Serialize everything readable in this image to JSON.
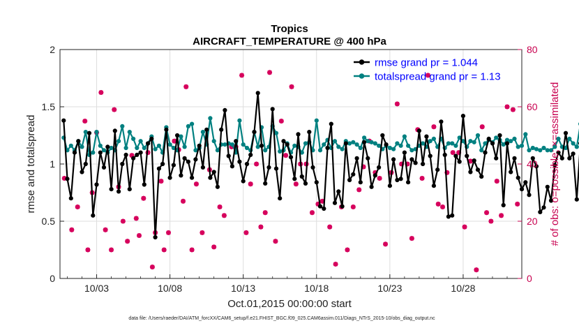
{
  "chart_data": {
    "type": "line",
    "title": "Tropics",
    "subtitle": "AIRCRAFT_TEMPERATURE @ 400 hPa",
    "xlabel": "Oct.01,2015 00:00:00 start",
    "ylabel": "rmse and totalspread",
    "y2label": "# of obs: o=possible; ×=assimilated",
    "xlim": [
      0.5,
      32
    ],
    "ylim": [
      0,
      2
    ],
    "y2lim": [
      0,
      80
    ],
    "x_ticks": [
      3,
      8,
      13,
      18,
      23,
      28
    ],
    "x_tick_labels": [
      "10/03",
      "10/08",
      "10/13",
      "10/18",
      "10/23",
      "10/28"
    ],
    "y_ticks": [
      0,
      0.5,
      1,
      1.5,
      2
    ],
    "y_tick_labels": [
      "0",
      "0.5",
      "1",
      "1.5",
      "2"
    ],
    "y2_ticks": [
      0,
      20,
      40,
      60,
      80
    ],
    "y2_tick_labels": [
      "0",
      "20",
      "40",
      "60",
      "80"
    ],
    "x_start": 0.75,
    "x_step": 0.25,
    "series": [
      {
        "name": "rmse grand pr = 1.044",
        "color": "#000000",
        "values": [
          1.38,
          0.87,
          0.7,
          1.1,
          1.2,
          0.93,
          1.0,
          1.27,
          0.55,
          0.82,
          1.1,
          0.97,
          1.15,
          0.78,
          1.29,
          0.76,
          1.0,
          1.08,
          0.78,
          1.05,
          1.08,
          1.1,
          0.82,
          1.18,
          1.22,
          0.36,
          0.96,
          1.0,
          1.3,
          0.88,
          0.99,
          1.25,
          0.9,
          1.05,
          1.02,
          0.88,
          1.04,
          1.16,
          0.97,
          1.3,
          0.88,
          0.93,
          0.8,
          1.3,
          1.47,
          1.07,
          0.98,
          1.2,
          1.02,
          0.85,
          1.0,
          1.08,
          1.28,
          1.62,
          1.16,
          0.83,
          0.97,
          1.48,
          0.96,
          0.7,
          1.2,
          1.17,
          1.06,
          0.87,
          1.26,
          0.89,
          0.83,
          1.28,
          0.97,
          0.84,
          0.63,
          0.61,
          1.14,
          1.35,
          0.66,
          0.76,
          0.63,
          1.18,
          0.86,
          0.91,
          1.05,
          0.84,
          1.19,
          1.05,
          0.8,
          0.9,
          0.97,
          1.25,
          1.17,
          0.81,
          1.04,
          0.86,
          0.87,
          1.1,
          0.84,
          1.04,
          1.01,
          1.29,
          1.0,
          1.24,
          1.07,
          0.81,
          0.95,
          1.37,
          1.08,
          0.54,
          0.55,
          1.07,
          1.02,
          1.42,
          1.07,
          0.93,
          1.03,
          0.95,
          0.89,
          1.1,
          1.22,
          1.18,
          1.05,
          1.25,
          0.64,
          1.18,
          0.93,
          1.05,
          0.88,
          0.78,
          0.84,
          0.73,
          1.05,
          0.98,
          0.58,
          0.62,
          0.8,
          0.68,
          0.99,
          1.1,
          1.05,
          1.27,
          1.05,
          1.09,
          0.69,
          1.18
        ]
      },
      {
        "name": "totalspread grand pr = 1.13",
        "color": "#008080",
        "values": [
          1.23,
          1.12,
          1.16,
          1.12,
          1.2,
          1.15,
          1.28,
          1.08,
          1.1,
          1.28,
          1.16,
          1.12,
          1.1,
          1.14,
          1.12,
          1.2,
          1.33,
          1.14,
          1.28,
          1.22,
          1.14,
          1.2,
          1.14,
          1.18,
          1.24,
          1.13,
          1.16,
          1.1,
          1.32,
          1.17,
          1.14,
          1.12,
          1.24,
          1.15,
          1.33,
          1.35,
          1.12,
          1.14,
          1.28,
          1.17,
          1.4,
          1.2,
          1.12,
          1.17,
          1.17,
          1.18,
          1.17,
          1.1,
          1.38,
          1.17,
          1.14,
          1.12,
          1.28,
          1.15,
          1.32,
          1.12,
          1.15,
          1.33,
          1.27,
          1.11,
          1.12,
          1.18,
          1.1,
          1.16,
          1.15,
          1.1,
          1.18,
          1.19,
          1.12,
          1.38,
          1.12,
          1.17,
          1.21,
          1.14,
          1.2,
          1.15,
          1.13,
          1.2,
          1.18,
          1.19,
          1.17,
          1.14,
          1.23,
          1.2,
          1.19,
          1.18,
          1.16,
          1.13,
          1.16,
          1.14,
          1.13,
          1.18,
          1.16,
          1.24,
          1.16,
          1.12,
          1.13,
          1.16,
          1.18,
          1.15,
          1.2,
          1.22,
          1.15,
          1.22,
          1.14,
          1.18,
          1.18,
          1.16,
          1.23,
          1.2,
          1.15,
          1.2,
          1.19,
          1.25,
          1.12,
          1.18,
          1.21,
          1.19,
          1.23,
          1.21,
          1.17,
          1.21,
          1.2,
          1.22,
          1.15,
          1.16,
          1.26,
          1.12,
          1.14,
          1.13,
          1.12,
          1.14,
          1.12,
          1.12,
          1.15,
          1.22,
          1.15,
          1.14,
          1.22,
          1.18,
          1.15,
          1.35,
          1.12
        ]
      }
    ],
    "obs_count": {
      "name": "# of obs",
      "color": "#d6005c",
      "x": [
        0.8,
        1.3,
        1.7,
        2.2,
        2.4,
        2.7,
        3.0,
        3.3,
        3.6,
        4.0,
        4.2,
        4.5,
        4.8,
        5.1,
        5.4,
        5.7,
        5.9,
        6.2,
        6.5,
        6.8,
        7.0,
        7.4,
        7.6,
        7.9,
        8.3,
        8.6,
        8.9,
        9.1,
        9.5,
        9.8,
        10.2,
        10.7,
        11.0,
        11.4,
        11.7,
        12.2,
        12.5,
        12.9,
        13.2,
        13.5,
        13.9,
        14.2,
        14.5,
        14.8,
        15.2,
        15.6,
        15.9,
        16.3,
        16.6,
        16.9,
        17.3,
        17.7,
        18.1,
        18.4,
        18.9,
        19.3,
        19.7,
        20.1,
        20.5,
        20.9,
        21.2,
        21.6,
        22.0,
        22.3,
        22.7,
        23.1,
        23.5,
        23.8,
        24.2,
        24.5,
        24.9,
        25.2,
        25.6,
        26.0,
        26.3,
        26.6,
        26.9,
        27.3,
        27.7,
        28.1,
        28.5,
        28.9,
        29.3,
        29.6,
        29.9,
        30.3,
        30.6,
        31.0,
        31.4,
        31.7
      ],
      "values": [
        35,
        17,
        25,
        55,
        10,
        30,
        51,
        65,
        17,
        10,
        59,
        32,
        20,
        13,
        43,
        21,
        15,
        28,
        44,
        4,
        16,
        34,
        10,
        16,
        48,
        45,
        27,
        67,
        10,
        33,
        16,
        38,
        11,
        25,
        22,
        46,
        46,
        71,
        16,
        33,
        40,
        18,
        23,
        72,
        13,
        55,
        43,
        67,
        33,
        40,
        40,
        23,
        26,
        27,
        18,
        5,
        25,
        10,
        25,
        31,
        39,
        48,
        37,
        35,
        12,
        37,
        61,
        40,
        40,
        14,
        52,
        35,
        71,
        53,
        26,
        25,
        37,
        44,
        44,
        18,
        41,
        3,
        53,
        23,
        20,
        34,
        22,
        60,
        59,
        26
      ]
    },
    "footer": "data file: /Users/raeder/DAI/ATM_forcXX/CAM6_setup/f.e21.FHIST_BGC.f09_025.CAM6assim.011/Diags_NTrS_2015-10/obs_diag_output.nc"
  }
}
